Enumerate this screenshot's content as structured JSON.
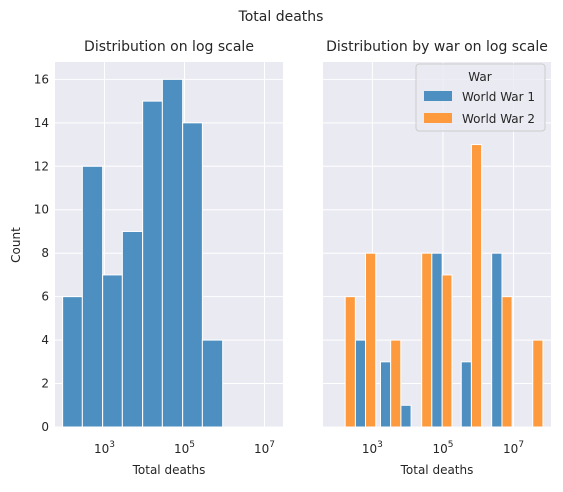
{
  "suptitle": "Total deaths",
  "colors": {
    "ww1": "#4c8fc0",
    "ww2": "#fd9a3e",
    "bar_single": "#4c8fc0"
  },
  "chart_data": [
    {
      "type": "bar",
      "title": "Distribution on log scale",
      "xlabel": "Total deaths",
      "ylabel": "Count",
      "xscale": "log",
      "ylim": [
        0,
        16.8
      ],
      "yticks": [
        0,
        2,
        4,
        6,
        8,
        10,
        12,
        14,
        16
      ],
      "xticks": [
        {
          "value": 1000,
          "base": "10",
          "exp": "3"
        },
        {
          "value": 100000,
          "base": "10",
          "exp": "5"
        },
        {
          "value": 10000000,
          "base": "10",
          "exp": "7"
        }
      ],
      "bins": [
        {
          "x0": 90,
          "x1": 280,
          "value": 6
        },
        {
          "x0": 280,
          "x1": 900,
          "value": 12
        },
        {
          "x0": 900,
          "x1": 2800,
          "value": 7
        },
        {
          "x0": 2800,
          "x1": 9000,
          "value": 9
        },
        {
          "x0": 9000,
          "x1": 28000,
          "value": 15
        },
        {
          "x0": 28000,
          "x1": 90000,
          "value": 16
        },
        {
          "x0": 90000,
          "x1": 280000,
          "value": 14
        },
        {
          "x0": 280000,
          "x1": 900000,
          "value": 4
        }
      ],
      "grid": true
    },
    {
      "type": "bar",
      "title": "Distribution by war on log scale",
      "xlabel": "Total deaths",
      "ylabel": "",
      "xscale": "log",
      "ylim": [
        0,
        16.8
      ],
      "yticks": [
        0,
        2,
        4,
        6,
        8,
        10,
        12,
        14,
        16
      ],
      "xticks": [
        {
          "value": 1000,
          "base": "10",
          "exp": "3"
        },
        {
          "value": 100000,
          "base": "10",
          "exp": "5"
        },
        {
          "value": 10000000,
          "base": "10",
          "exp": "7"
        }
      ],
      "legend": {
        "title": "War",
        "placement": "top-right"
      },
      "series": [
        {
          "name": "World War 1",
          "color_key": "ww1",
          "bins": [
            {
              "x0": 330,
              "x1": 640,
              "value": 4
            },
            {
              "x0": 1700,
              "x1": 3300,
              "value": 3
            },
            {
              "x0": 6400,
              "x1": 12500,
              "value": 1
            },
            {
              "x0": 48000,
              "x1": 95000,
              "value": 8
            },
            {
              "x0": 330000,
              "x1": 640000,
              "value": 3
            },
            {
              "x0": 2400000,
              "x1": 4700000,
              "value": 8
            }
          ]
        },
        {
          "name": "World War 2",
          "color_key": "ww2",
          "bins": [
            {
              "x0": 170,
              "x1": 330,
              "value": 6
            },
            {
              "x0": 640,
              "x1": 1250,
              "value": 8
            },
            {
              "x0": 3300,
              "x1": 6400,
              "value": 4
            },
            {
              "x0": 25000,
              "x1": 48000,
              "value": 8
            },
            {
              "x0": 95000,
              "x1": 180000,
              "value": 7
            },
            {
              "x0": 640000,
              "x1": 1250000,
              "value": 13
            },
            {
              "x0": 4700000,
              "x1": 9100000,
              "value": 6
            },
            {
              "x0": 35000000,
              "x1": 68000000,
              "value": 4
            }
          ]
        }
      ],
      "grid": true
    }
  ]
}
